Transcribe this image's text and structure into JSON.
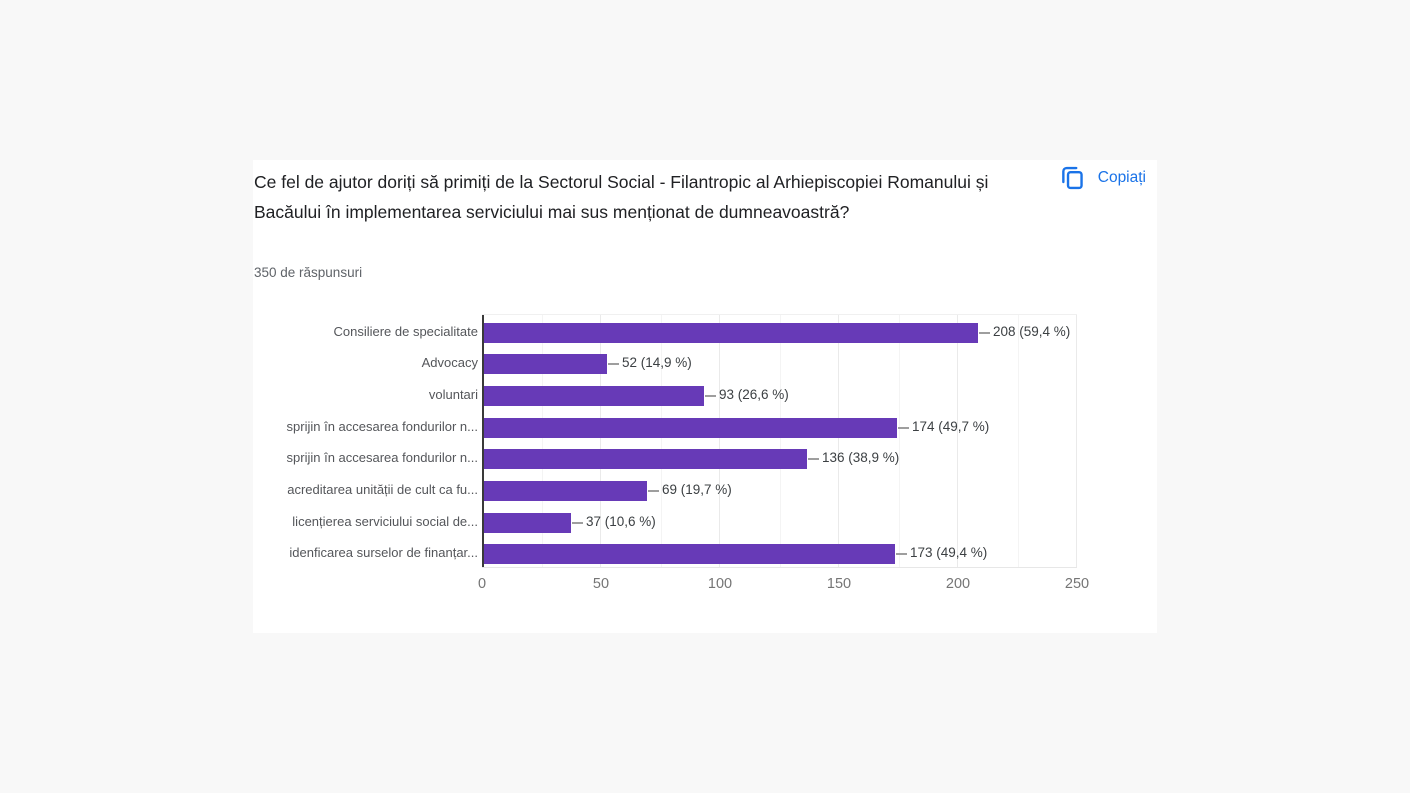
{
  "page": {
    "background": "#f8f8f8"
  },
  "card": {
    "title": "Ce fel de ajutor doriți să primiți de la Sectorul Social - Filantropic al Arhiepiscopiei Romanului și Bacăului în implementarea serviciului mai sus menționat de dumneavoastră?",
    "responses_label": "350 de răspunsuri",
    "copy_button_label": "Copiați",
    "accent_color": "#1a73e8"
  },
  "chart_data": {
    "type": "bar",
    "orientation": "horizontal",
    "title": "",
    "categories": [
      "Consiliere de specialitate",
      "Advocacy",
      "voluntari",
      "sprijin în accesarea fondurilor n...",
      "sprijin în accesarea fondurilor n...",
      "acreditarea unității de cult ca fu...",
      "licențierea serviciului social de...",
      "idenficarea surselor de finanțar..."
    ],
    "values": [
      208,
      52,
      93,
      174,
      136,
      69,
      37,
      173
    ],
    "annotations": [
      "208 (59,4 %)",
      "52 (14,9 %)",
      "93 (26,6 %)",
      "174 (49,7 %)",
      "136 (38,9 %)",
      "69 (19,7 %)",
      "37 (10,6 %)",
      "173 (49,4 %)"
    ],
    "total_responses": 350,
    "xlim": [
      0,
      250
    ],
    "xticks": [
      0,
      50,
      100,
      150,
      200,
      250
    ],
    "bar_color": "#673ab7",
    "grid": true,
    "legend_position": "none"
  }
}
